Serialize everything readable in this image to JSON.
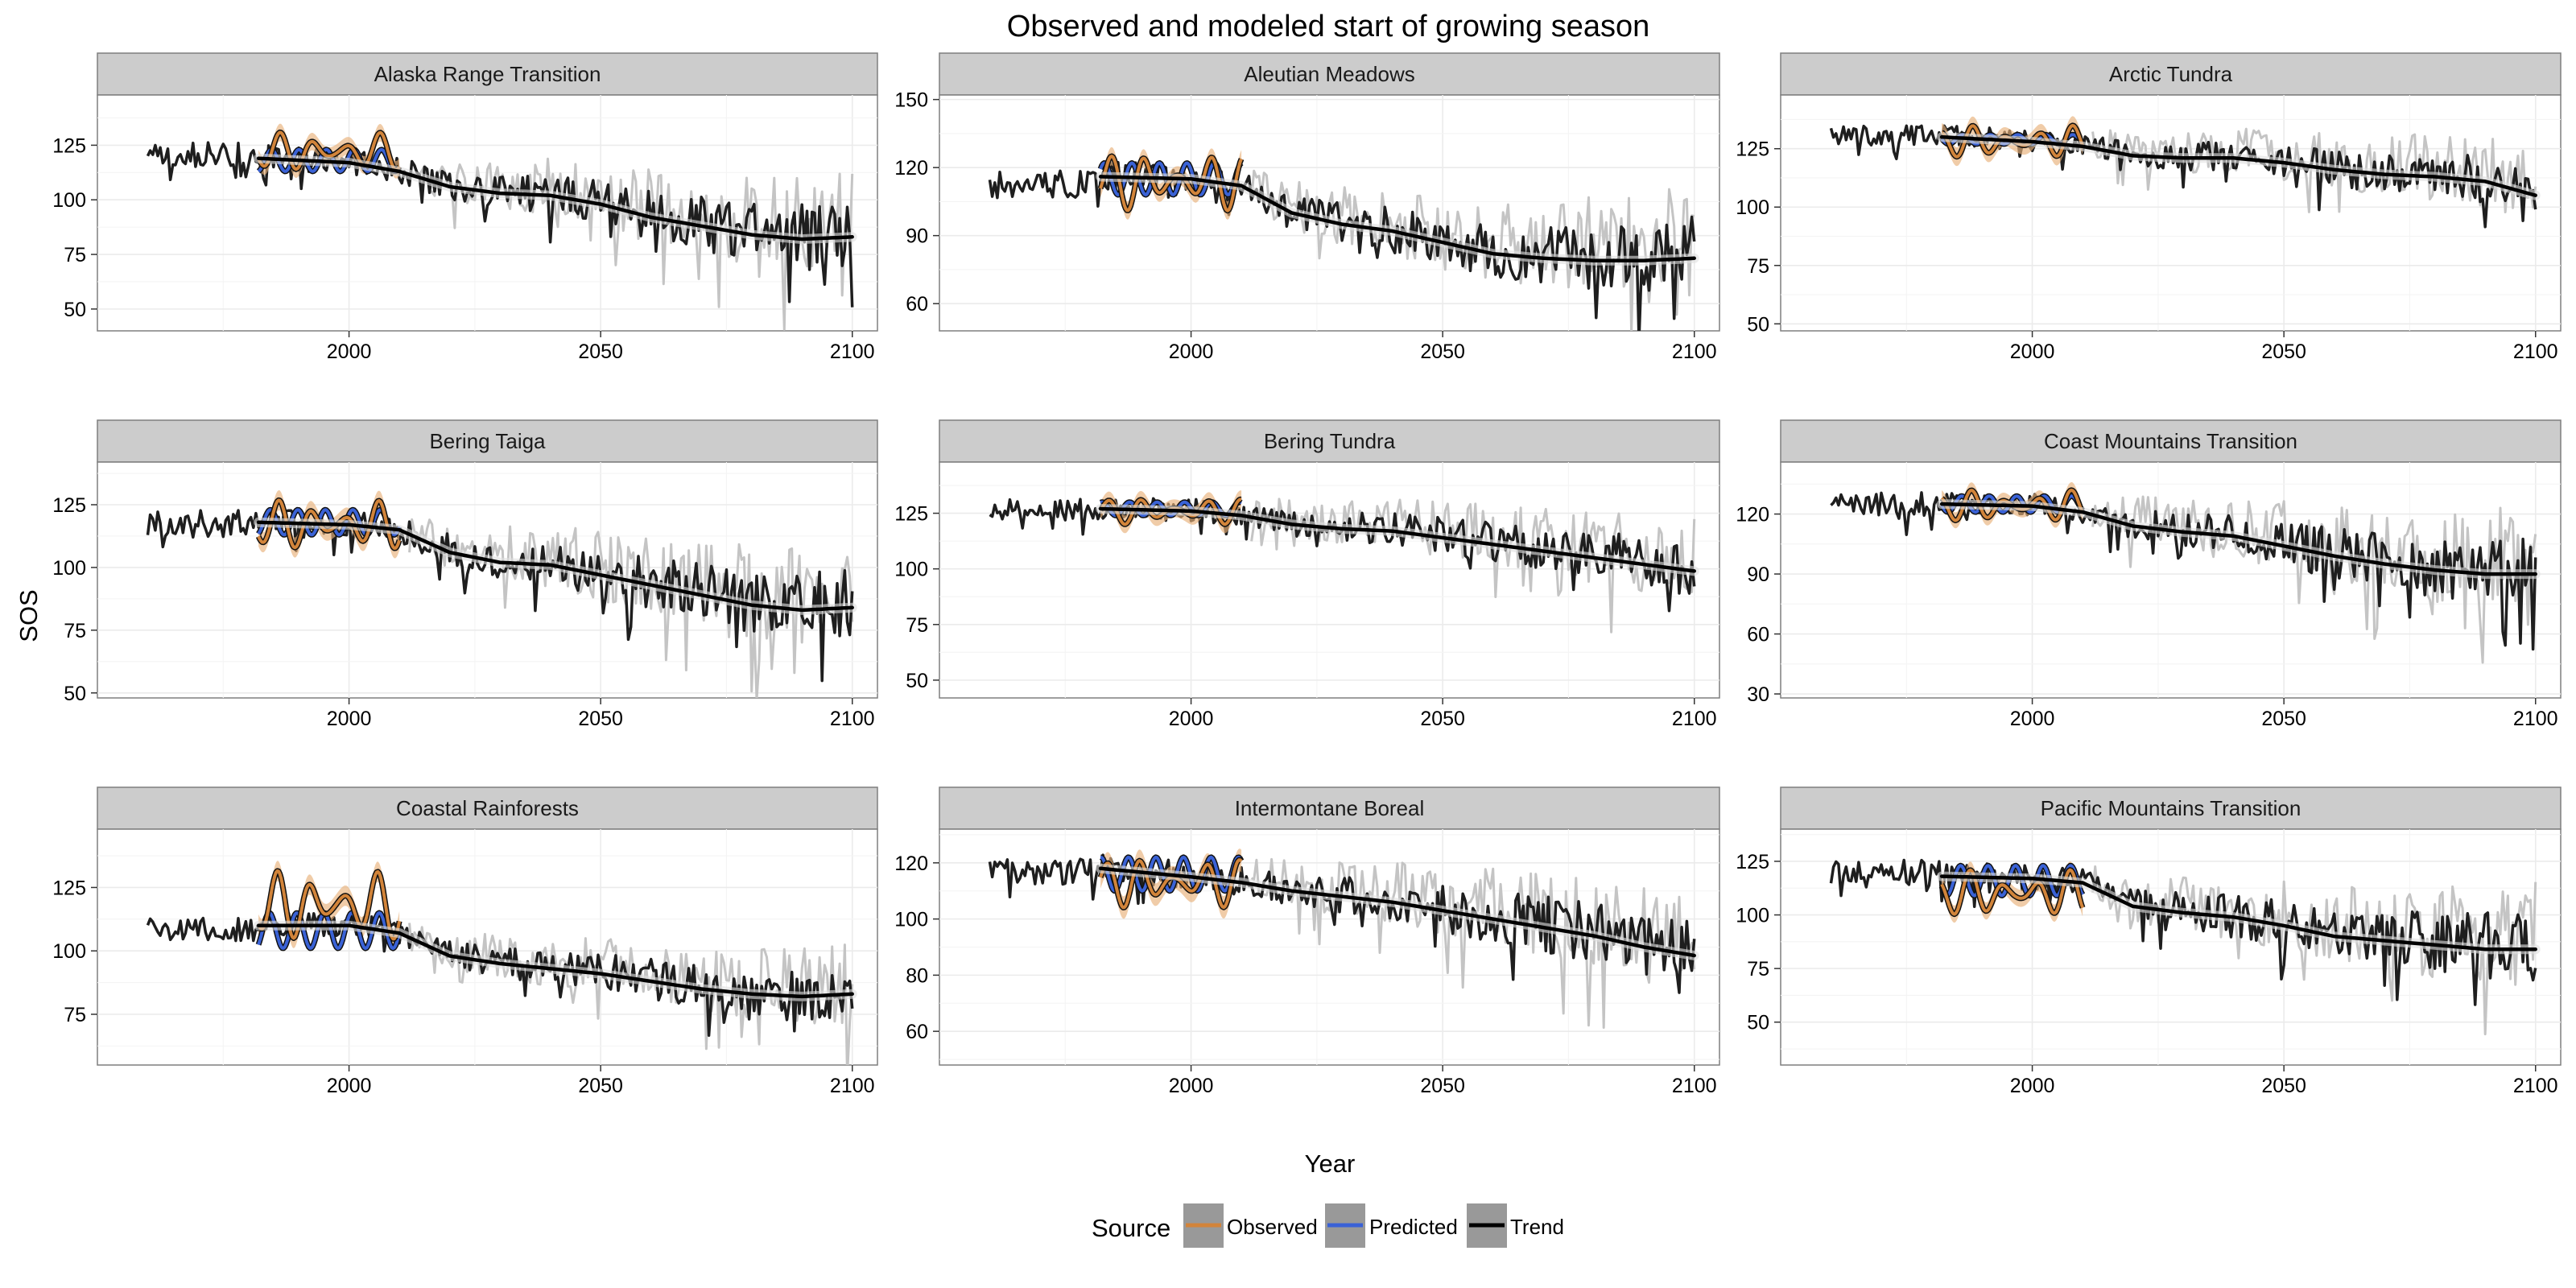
{
  "title": "Observed and modeled start of growing season",
  "xlabel": "Year",
  "ylabel": "SOS",
  "legend": {
    "title": "Source",
    "items": [
      {
        "label": "Observed",
        "color": "#d2843a",
        "fill": "#e3a66b"
      },
      {
        "label": "Predicted",
        "color": "#3a62d6",
        "fill": "#9fb2ee"
      },
      {
        "label": "Trend",
        "color": "#000000",
        "fill": "#999999"
      }
    ]
  },
  "colors": {
    "observed": "#d2843a",
    "observed_band": "#e8b07a",
    "predicted": "#3a62d6",
    "trend": "#000000",
    "runs": "#1e1e1e",
    "runs_spread": "#c4c4c4",
    "trend_halo": "#e0e0e0"
  },
  "chart_data": [
    {
      "type": "line",
      "title": "Alaska Range Transition",
      "xlim": [
        1950,
        2105
      ],
      "ylim": [
        40,
        148
      ],
      "x_ticks": [
        2000,
        2050,
        2100
      ],
      "y_ticks": [
        50,
        75,
        100,
        125
      ],
      "observed_years": [
        1982,
        2010
      ],
      "observed_level": 122,
      "observed_amp": 9,
      "predicted_level": 118,
      "predicted_amp": 5,
      "trend": {
        "x": [
          1982,
          2000,
          2010,
          2020,
          2030,
          2040,
          2050,
          2060,
          2070,
          2080,
          2090,
          2100
        ],
        "y": [
          119,
          117,
          113,
          106,
          103,
          102,
          98,
          92,
          88,
          84,
          82,
          83
        ]
      },
      "runs": {
        "start_year": 1960,
        "start_level": 120,
        "end_level": 82,
        "spread": 22
      }
    },
    {
      "type": "line",
      "title": "Aleutian Meadows",
      "xlim": [
        1950,
        2105
      ],
      "ylim": [
        48,
        152
      ],
      "x_ticks": [
        2000,
        2050,
        2100
      ],
      "y_ticks": [
        60,
        90,
        120,
        150
      ],
      "observed_years": [
        1982,
        2010
      ],
      "observed_level": 114,
      "observed_amp": 13,
      "predicted_level": 115,
      "predicted_amp": 7,
      "trend": {
        "x": [
          1982,
          2000,
          2010,
          2020,
          2030,
          2040,
          2050,
          2060,
          2070,
          2080,
          2090,
          2100
        ],
        "y": [
          116,
          115,
          112,
          100,
          95,
          92,
          87,
          82,
          80,
          79,
          79,
          80
        ]
      },
      "runs": {
        "start_year": 1960,
        "start_level": 112,
        "end_level": 80,
        "spread": 24
      }
    },
    {
      "type": "line",
      "title": "Arctic Tundra",
      "xlim": [
        1950,
        2105
      ],
      "ylim": [
        47,
        148
      ],
      "x_ticks": [
        2000,
        2050,
        2100
      ],
      "y_ticks": [
        50,
        75,
        100,
        125
      ],
      "observed_years": [
        1982,
        2010
      ],
      "observed_level": 128,
      "observed_amp": 7,
      "predicted_level": 129,
      "predicted_amp": 2,
      "trend": {
        "x": [
          1982,
          2000,
          2010,
          2020,
          2030,
          2040,
          2050,
          2060,
          2070,
          2080,
          2090,
          2100
        ],
        "y": [
          130,
          128,
          126,
          122,
          121,
          121,
          119,
          116,
          114,
          113,
          111,
          105
        ]
      },
      "runs": {
        "start_year": 1960,
        "start_level": 130,
        "end_level": 106,
        "spread": 14
      }
    },
    {
      "type": "line",
      "title": "Bering Taiga",
      "xlim": [
        1950,
        2105
      ],
      "ylim": [
        48,
        142
      ],
      "x_ticks": [
        2000,
        2050,
        2100
      ],
      "y_ticks": [
        50,
        75,
        100,
        125
      ],
      "observed_years": [
        1982,
        2010
      ],
      "observed_level": 117,
      "observed_amp": 10,
      "predicted_level": 118,
      "predicted_amp": 5,
      "trend": {
        "x": [
          1982,
          2000,
          2010,
          2020,
          2030,
          2040,
          2050,
          2060,
          2070,
          2080,
          2090,
          2100
        ],
        "y": [
          118,
          117,
          115,
          106,
          102,
          101,
          97,
          93,
          89,
          85,
          83,
          84
        ]
      },
      "runs": {
        "start_year": 1960,
        "start_level": 117,
        "end_level": 83,
        "spread": 20
      }
    },
    {
      "type": "line",
      "title": "Bering Tundra",
      "xlim": [
        1950,
        2105
      ],
      "ylim": [
        42,
        148
      ],
      "x_ticks": [
        2000,
        2050,
        2100
      ],
      "y_ticks": [
        50,
        75,
        100,
        125
      ],
      "observed_years": [
        1982,
        2010
      ],
      "observed_level": 126,
      "observed_amp": 6,
      "predicted_level": 127,
      "predicted_amp": 3,
      "trend": {
        "x": [
          1982,
          2000,
          2010,
          2020,
          2030,
          2040,
          2050,
          2060,
          2070,
          2080,
          2090,
          2100
        ],
        "y": [
          127,
          126,
          124,
          120,
          118,
          117,
          114,
          111,
          108,
          105,
          102,
          99
        ]
      },
      "runs": {
        "start_year": 1960,
        "start_level": 126,
        "end_level": 98,
        "spread": 17
      }
    },
    {
      "type": "line",
      "title": "Coast Mountains Transition",
      "xlim": [
        1950,
        2105
      ],
      "ylim": [
        28,
        146
      ],
      "x_ticks": [
        2000,
        2050,
        2100
      ],
      "y_ticks": [
        30,
        60,
        90,
        120
      ],
      "observed_years": [
        1982,
        2010
      ],
      "observed_level": 124,
      "observed_amp": 8,
      "predicted_level": 125,
      "predicted_amp": 4,
      "trend": {
        "x": [
          1982,
          2000,
          2010,
          2020,
          2030,
          2040,
          2050,
          2060,
          2070,
          2080,
          2090,
          2100
        ],
        "y": [
          125,
          124,
          121,
          114,
          111,
          109,
          104,
          99,
          95,
          92,
          90,
          90
        ]
      },
      "runs": {
        "start_year": 1960,
        "start_level": 124,
        "end_level": 88,
        "spread": 26
      }
    },
    {
      "type": "line",
      "title": "Coastal Rainforests",
      "xlim": [
        1950,
        2105
      ],
      "ylim": [
        55,
        148
      ],
      "x_ticks": [
        2000,
        2050,
        2100
      ],
      "y_ticks": [
        75,
        100,
        125
      ],
      "observed_years": [
        1982,
        2010
      ],
      "observed_level": 118,
      "observed_amp": 14,
      "predicted_level": 108,
      "predicted_amp": 7,
      "trend": {
        "x": [
          1982,
          2000,
          2010,
          2020,
          2030,
          2040,
          2050,
          2060,
          2070,
          2080,
          2090,
          2100
        ],
        "y": [
          110,
          110,
          107,
          98,
          95,
          93,
          91,
          88,
          85,
          83,
          82,
          83
        ]
      },
      "runs": {
        "start_year": 1960,
        "start_level": 108,
        "end_level": 82,
        "spread": 14
      }
    },
    {
      "type": "line",
      "title": "Intermontane Boreal",
      "xlim": [
        1950,
        2105
      ],
      "ylim": [
        48,
        132
      ],
      "x_ticks": [
        2000,
        2050,
        2100
      ],
      "y_ticks": [
        60,
        80,
        100,
        120
      ],
      "observed_years": [
        1982,
        2010
      ],
      "observed_level": 113,
      "observed_amp": 9,
      "predicted_level": 116,
      "predicted_amp": 6,
      "trend": {
        "x": [
          1982,
          2000,
          2010,
          2020,
          2030,
          2040,
          2050,
          2060,
          2070,
          2080,
          2090,
          2100
        ],
        "y": [
          118,
          115,
          113,
          110,
          108,
          106,
          103,
          100,
          97,
          94,
          90,
          87
        ]
      },
      "runs": {
        "start_year": 1960,
        "start_level": 116,
        "end_level": 86,
        "spread": 17
      }
    },
    {
      "type": "line",
      "title": "Pacific Mountains Transition",
      "xlim": [
        1950,
        2105
      ],
      "ylim": [
        30,
        140
      ],
      "x_ticks": [
        2000,
        2050,
        2100
      ],
      "y_ticks": [
        50,
        75,
        100,
        125
      ],
      "observed_years": [
        1982,
        2010
      ],
      "observed_level": 110,
      "observed_amp": 11,
      "predicted_level": 116,
      "predicted_amp": 7,
      "trend": {
        "x": [
          1982,
          2000,
          2010,
          2020,
          2030,
          2040,
          2050,
          2060,
          2070,
          2080,
          2090,
          2100
        ],
        "y": [
          118,
          117,
          115,
          104,
          101,
          99,
          95,
          90,
          88,
          86,
          84,
          84
        ]
      },
      "runs": {
        "start_year": 1960,
        "start_level": 119,
        "end_level": 83,
        "spread": 24
      }
    }
  ]
}
